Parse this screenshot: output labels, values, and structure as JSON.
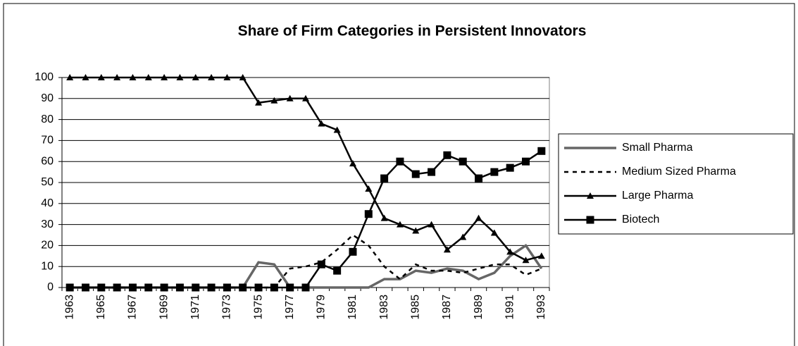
{
  "chart_data": {
    "type": "line",
    "title": "Share of Firm Categories in Persistent Innovators",
    "categories": [
      "1963",
      null,
      "1965",
      null,
      "1967",
      null,
      "1969",
      null,
      "1971",
      null,
      "1973",
      null,
      "1975",
      null,
      "1977",
      null,
      "1979",
      null,
      "1981",
      null,
      "1983",
      null,
      "1985",
      null,
      "1987",
      null,
      "1989",
      null,
      "1991",
      null,
      "1993"
    ],
    "ylim": [
      0,
      100
    ],
    "yticks": [
      0,
      10,
      20,
      30,
      40,
      50,
      60,
      70,
      80,
      90,
      100
    ],
    "grid": true,
    "legend": "right",
    "series": [
      {
        "name": "Small Pharma",
        "color": "#666666",
        "dash": "solid",
        "marker": "none",
        "values": [
          0,
          0,
          0,
          0,
          0,
          0,
          0,
          0,
          0,
          0,
          0,
          0,
          12,
          11,
          0,
          0,
          0,
          0,
          0,
          0,
          4,
          4,
          8,
          7,
          9,
          8,
          4,
          7,
          15,
          20,
          9
        ]
      },
      {
        "name": "Medium Sized Pharma",
        "color": "#000000",
        "dash": "dashed",
        "marker": "none",
        "values": [
          0,
          0,
          0,
          0,
          0,
          0,
          0,
          0,
          0,
          0,
          0,
          0,
          0,
          0,
          9,
          10,
          12,
          18,
          25,
          20,
          10,
          4,
          11,
          8,
          8,
          7,
          9,
          11,
          11,
          6,
          9
        ]
      },
      {
        "name": "Large Pharma",
        "color": "#000000",
        "dash": "solid",
        "marker": "triangle",
        "values": [
          100,
          100,
          100,
          100,
          100,
          100,
          100,
          100,
          100,
          100,
          100,
          100,
          88,
          89,
          90,
          90,
          78,
          75,
          59,
          47,
          33,
          30,
          27,
          30,
          18,
          24,
          33,
          26,
          17,
          13,
          15
        ]
      },
      {
        "name": "Biotech",
        "color": "#000000",
        "dash": "solid",
        "marker": "square",
        "values": [
          0,
          0,
          0,
          0,
          0,
          0,
          0,
          0,
          0,
          0,
          0,
          0,
          0,
          0,
          0,
          0,
          11,
          8,
          17,
          35,
          52,
          60,
          54,
          55,
          63,
          60,
          52,
          55,
          57,
          60,
          65
        ]
      }
    ]
  }
}
